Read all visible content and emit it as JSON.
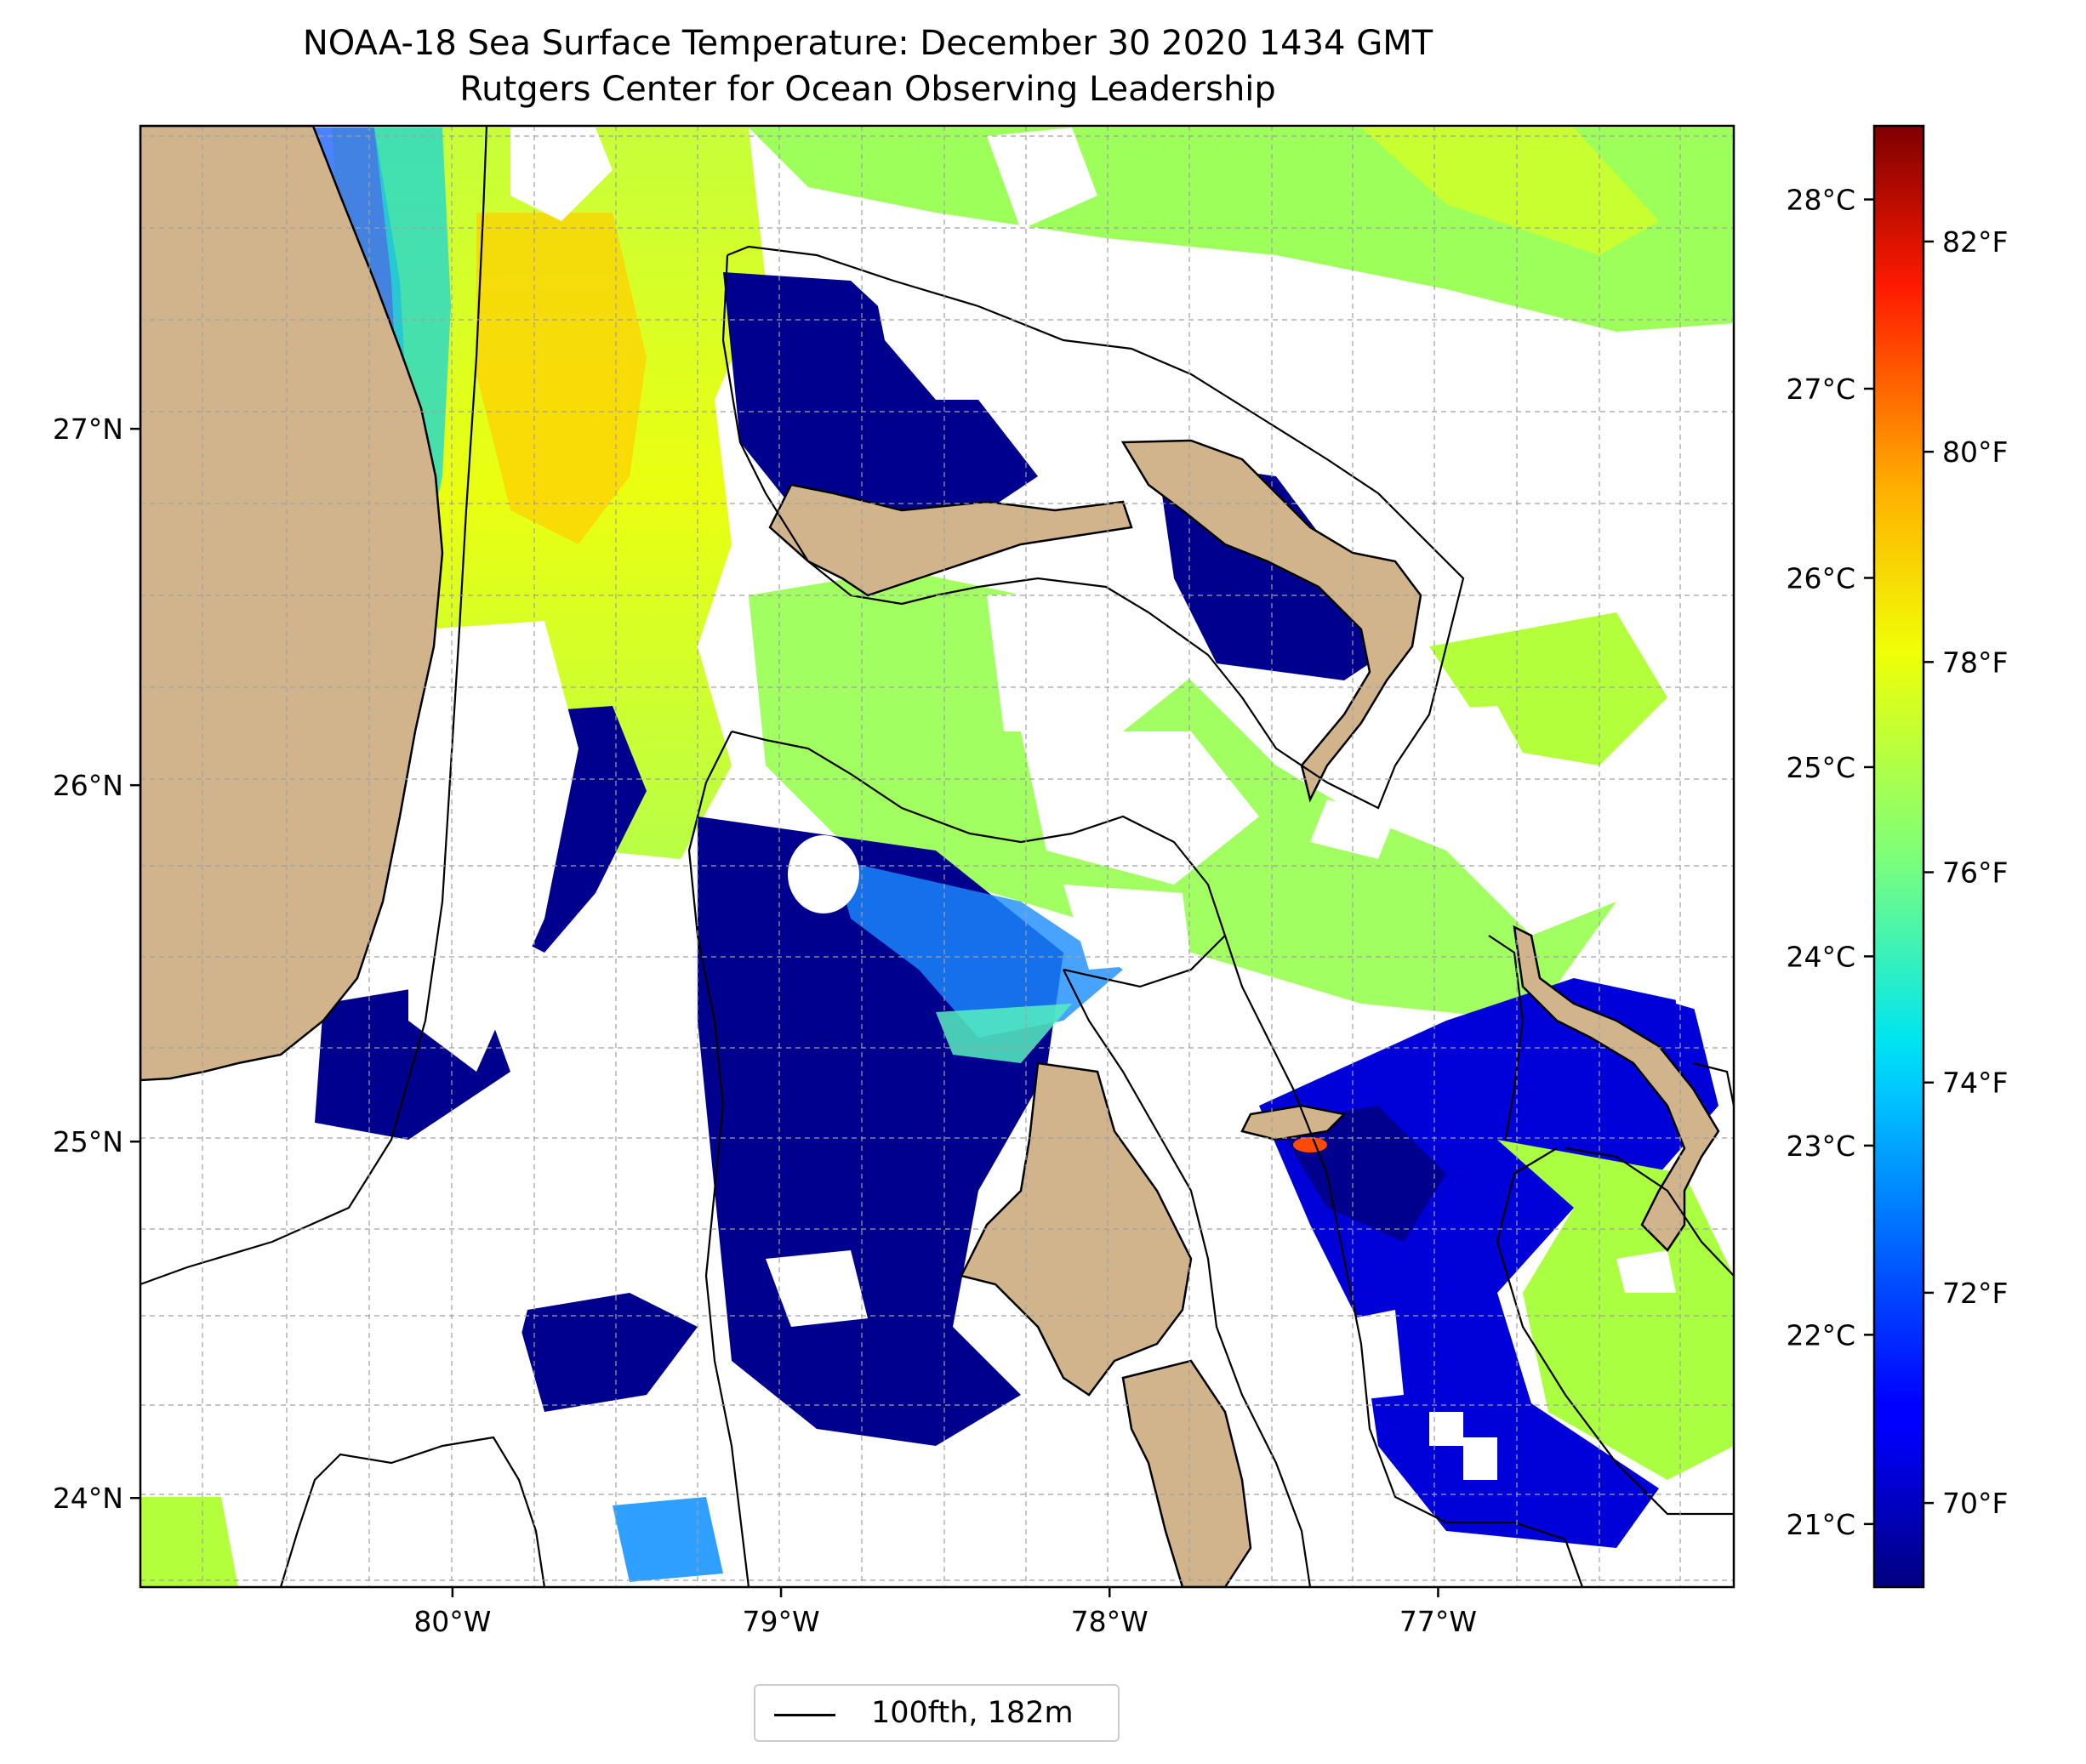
{
  "title": "NOAA-18 Sea Surface Temperature: December 30 2020 1434 GMT",
  "subtitle": "Rutgers Center for Ocean Observing Leadership",
  "colors": {
    "land": "#d2b48c",
    "cloud_nodata": "#ffffff",
    "colormap": "jet"
  },
  "map": {
    "lon_range": [
      -80.95,
      -76.1
    ],
    "lat_range": [
      23.75,
      27.85
    ],
    "lon_ticks": [
      {
        "value": -80,
        "label": "80°W"
      },
      {
        "value": -79,
        "label": "79°W"
      },
      {
        "value": -78,
        "label": "78°W"
      },
      {
        "value": -77,
        "label": "77°W"
      }
    ],
    "lat_ticks": [
      {
        "value": 27,
        "label": "27°N"
      },
      {
        "value": 26,
        "label": "26°N"
      },
      {
        "value": 25,
        "label": "25°N"
      },
      {
        "value": 24,
        "label": "24°N"
      }
    ]
  },
  "colorbar": {
    "range_f": [
      69.2,
      83.1
    ],
    "celsius_ticks": [
      {
        "value": 28,
        "label": "28°C"
      },
      {
        "value": 27,
        "label": "27°C"
      },
      {
        "value": 26,
        "label": "26°C"
      },
      {
        "value": 25,
        "label": "25°C"
      },
      {
        "value": 24,
        "label": "24°C"
      },
      {
        "value": 23,
        "label": "23°C"
      },
      {
        "value": 22,
        "label": "22°C"
      },
      {
        "value": 21,
        "label": "21°C"
      }
    ],
    "fahrenheit_ticks": [
      {
        "value": 82,
        "label": "82°F"
      },
      {
        "value": 80,
        "label": "80°F"
      },
      {
        "value": 78,
        "label": "78°F"
      },
      {
        "value": 76,
        "label": "76°F"
      },
      {
        "value": 74,
        "label": "74°F"
      },
      {
        "value": 72,
        "label": "72°F"
      },
      {
        "value": 70,
        "label": "70°F"
      }
    ]
  },
  "legend": {
    "label": "100fth, 182m"
  }
}
